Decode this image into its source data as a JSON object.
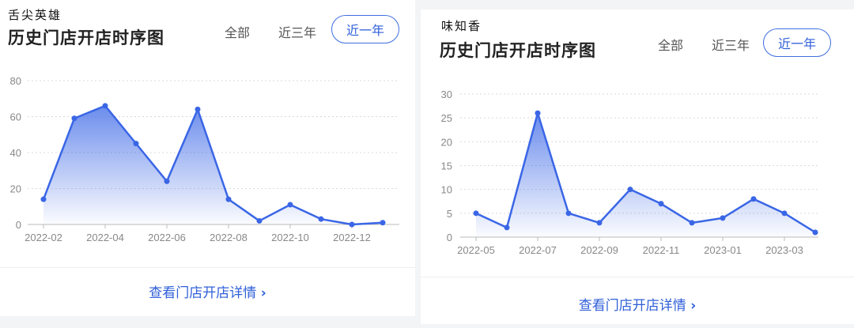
{
  "colors": {
    "accent": "#3f6fe0",
    "line": "#3a66e6",
    "grid": "#d9d9d9",
    "axis_text": "#888888"
  },
  "panels": [
    {
      "brand": "舌尖英雄",
      "title": "历史门店开店时序图",
      "ranges": [
        "全部",
        "近三年",
        "近一年"
      ],
      "selected_range": "近一年",
      "link": "查看门店开店详情",
      "link_icon": "chevron-right-icon"
    },
    {
      "brand": "味知香",
      "title": "历史门店开店时序图",
      "ranges": [
        "全部",
        "近三年",
        "近一年"
      ],
      "selected_range": "近一年",
      "link": "查看门店开店详情",
      "link_icon": "chevron-right-icon"
    }
  ],
  "chart_data": [
    {
      "type": "area",
      "x": [
        "2022-02",
        "2022-03",
        "2022-04",
        "2022-05",
        "2022-06",
        "2022-07",
        "2022-08",
        "2022-09",
        "2022-10",
        "2022-11",
        "2022-12",
        "2023-01"
      ],
      "values": [
        14,
        59,
        66,
        45,
        24,
        64,
        14,
        2,
        11,
        3,
        0,
        1
      ],
      "xticks": [
        "2022-02",
        "2022-04",
        "2022-06",
        "2022-08",
        "2022-10",
        "2022-12"
      ],
      "yticks": [
        0,
        20,
        40,
        60,
        80
      ],
      "ylim": [
        0,
        80
      ],
      "grid": true
    },
    {
      "type": "area",
      "x": [
        "2022-05",
        "2022-06",
        "2022-07",
        "2022-08",
        "2022-09",
        "2022-10",
        "2022-11",
        "2022-12",
        "2023-01",
        "2023-02",
        "2023-03",
        "2023-04"
      ],
      "values": [
        5,
        2,
        26,
        5,
        3,
        10,
        7,
        3,
        4,
        8,
        5,
        1
      ],
      "xticks": [
        "2022-05",
        "2022-07",
        "2022-09",
        "2022-11",
        "2023-01",
        "2023-03"
      ],
      "yticks": [
        0,
        5,
        10,
        15,
        20,
        25,
        30
      ],
      "ylim": [
        0,
        30
      ],
      "grid": true
    }
  ]
}
